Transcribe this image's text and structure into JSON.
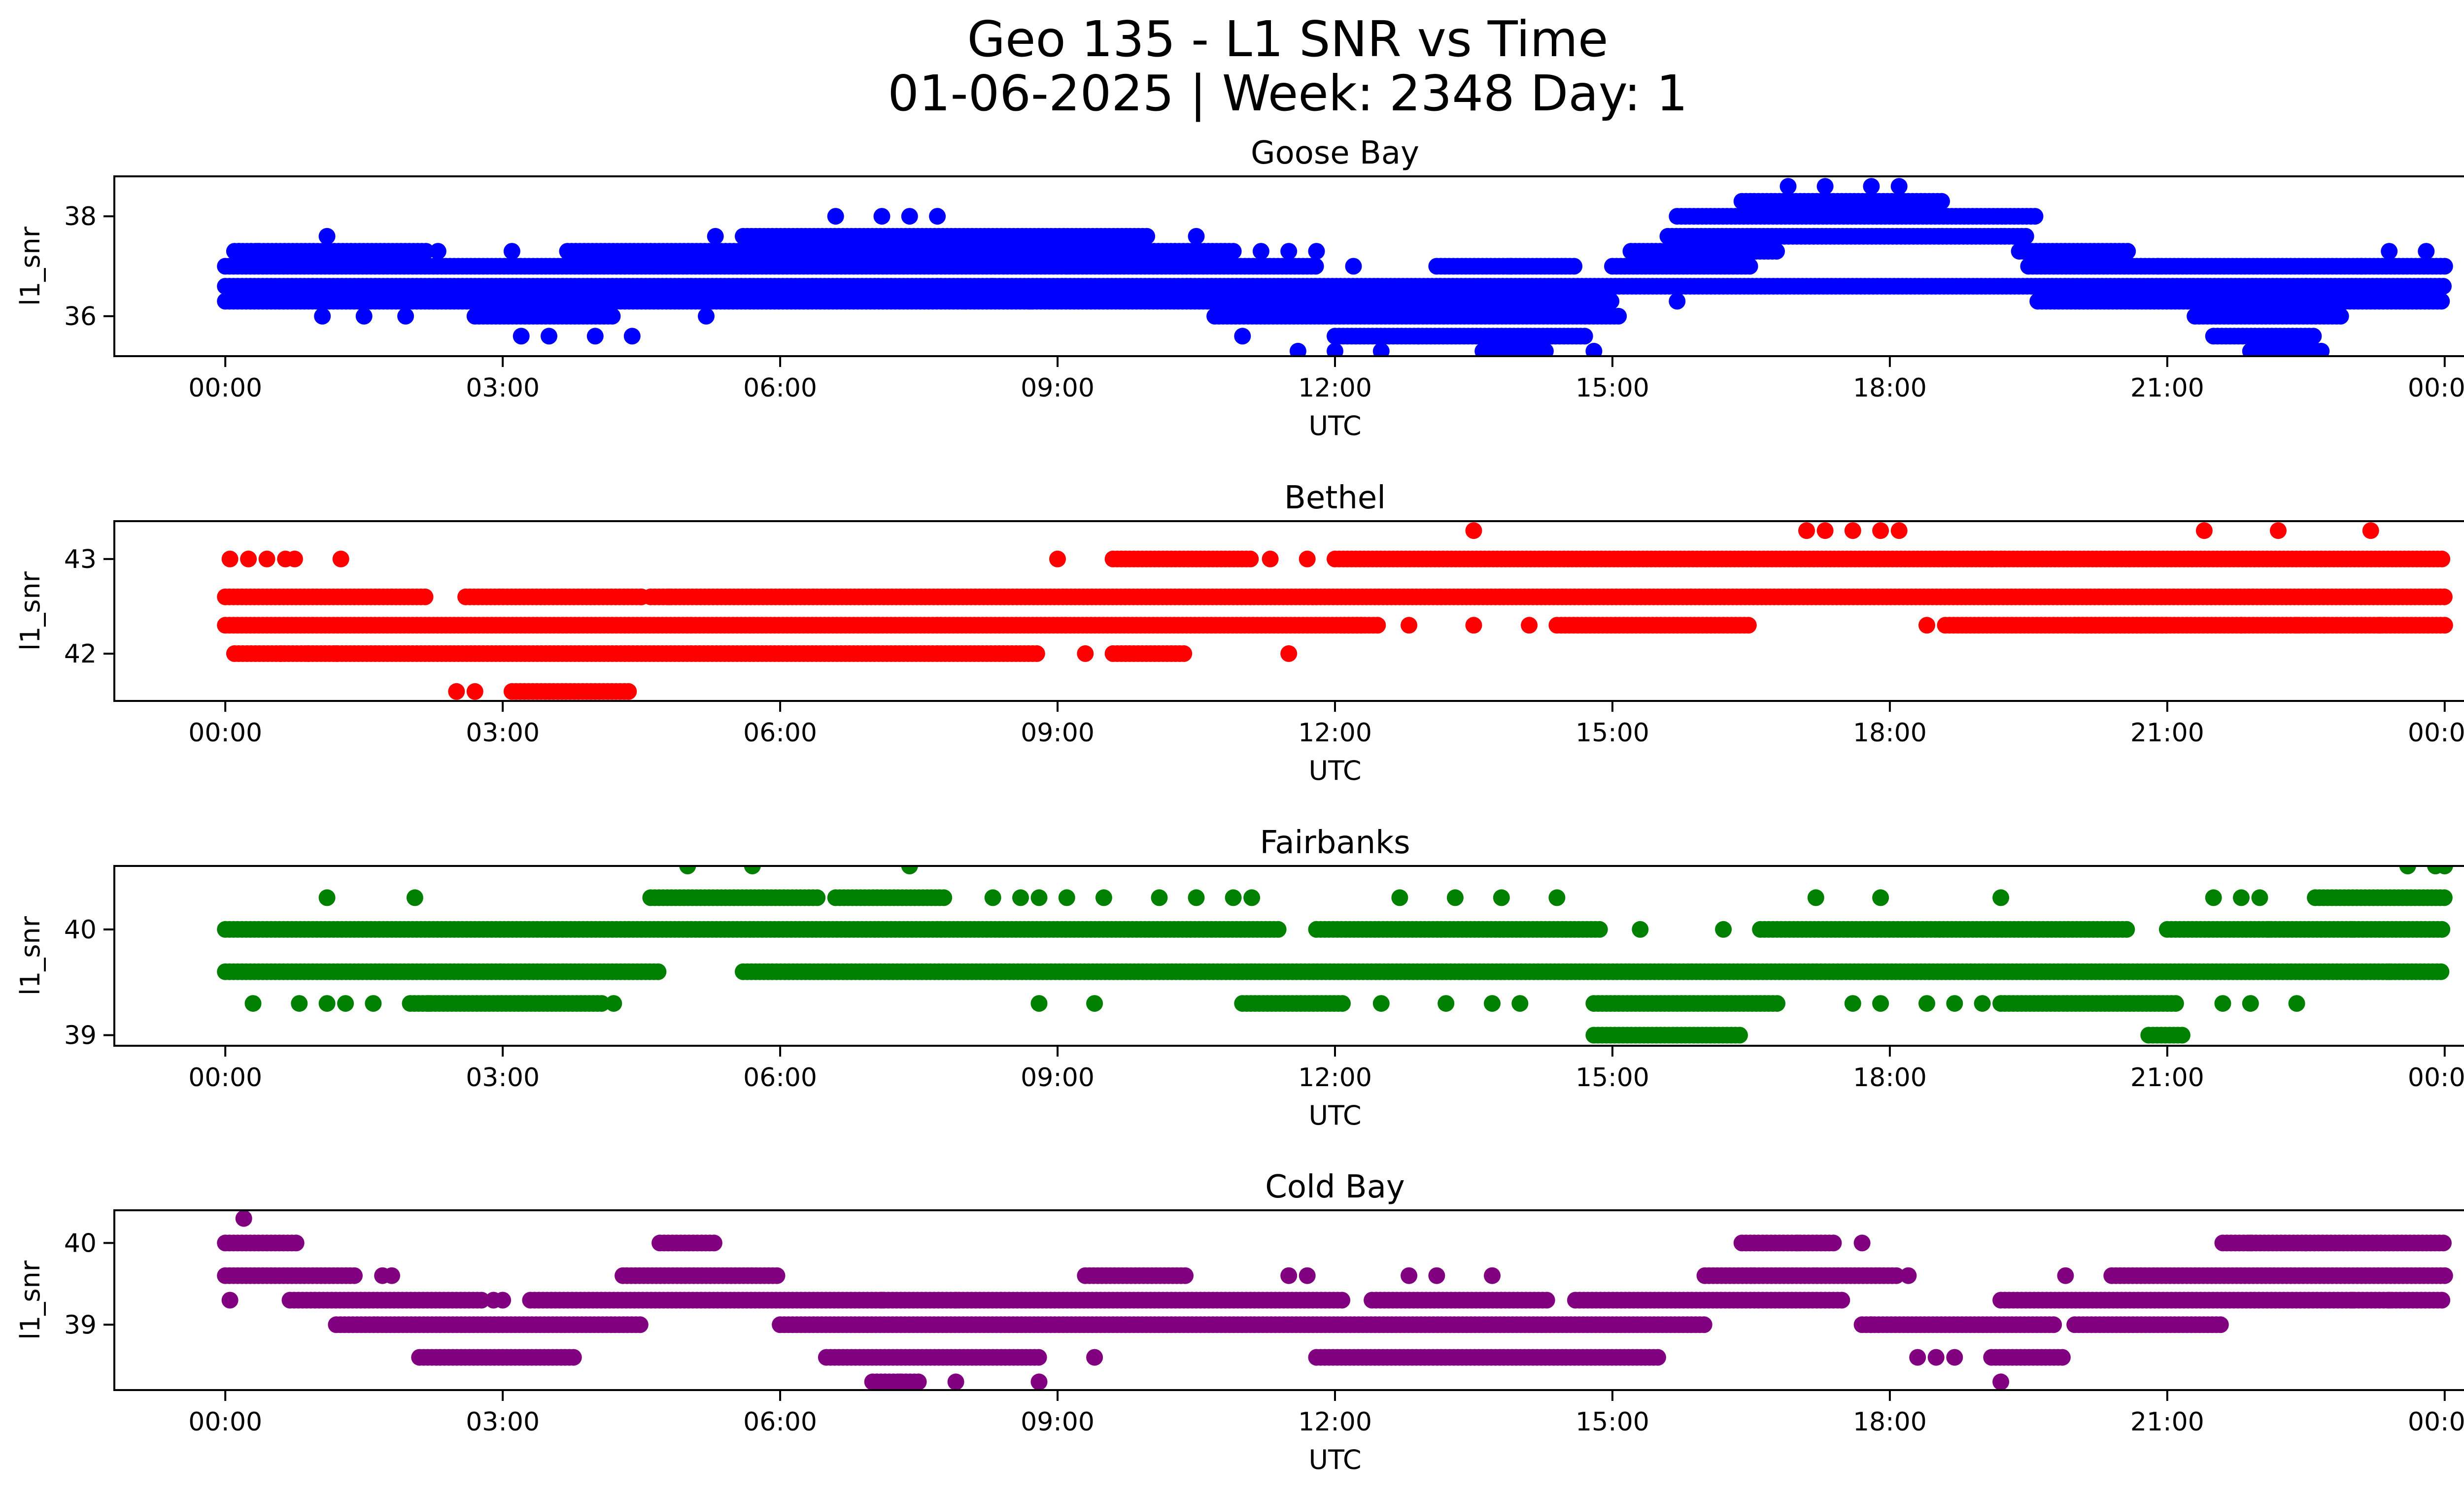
{
  "figure": {
    "title_line1": "Geo 135 - L1 SNR vs Time",
    "title_line2": "01-06-2025 | Week: 2348 Day: 1"
  },
  "chart_data": [
    {
      "type": "scatter",
      "title": "Goose Bay",
      "xlabel": "UTC",
      "ylabel": "l1_snr",
      "color": "#0000ff",
      "x_unit": "hours",
      "xlim": [
        -1.2,
        25.2
      ],
      "ylim": [
        35.2,
        38.8
      ],
      "x_ticks": [
        0,
        3,
        6,
        9,
        12,
        15,
        18,
        21,
        24
      ],
      "x_tick_labels": [
        "00:00",
        "03:00",
        "06:00",
        "09:00",
        "12:00",
        "15:00",
        "18:00",
        "21:00",
        "00:00"
      ],
      "y_ticks": [
        36,
        38
      ],
      "y_tick_labels": [
        "36",
        "38"
      ],
      "bands": [
        {
          "y": 37.0,
          "segments": [
            [
              0,
              11.8
            ],
            [
              13.1,
              14.6
            ],
            [
              19.5,
              24
            ]
          ]
        },
        {
          "y": 36.6,
          "segments": [
            [
              0,
              24
            ]
          ]
        },
        {
          "y": 36.3,
          "segments": [
            [
              0,
              15.0
            ],
            [
              19.6,
              24
            ]
          ]
        },
        {
          "y": 37.3,
          "segments": [
            [
              3.7,
              10.9
            ],
            [
              15.2,
              16.8
            ],
            [
              19.4,
              20.6
            ]
          ]
        },
        {
          "y": 36.0,
          "segments": [
            [
              2.7,
              4.2
            ],
            [
              10.7,
              15.1
            ],
            [
              21.3,
              22.9
            ]
          ]
        },
        {
          "y": 37.6,
          "segments": [
            [
              5.6,
              10.0
            ],
            [
              15.6,
              19.5
            ]
          ]
        },
        {
          "y": 37.0,
          "segments": [
            [
              15.0,
              16.5
            ]
          ]
        },
        {
          "y": 38.0,
          "segments": [
            [
              15.7,
              19.6
            ]
          ]
        },
        {
          "y": 38.3,
          "segments": [
            [
              16.4,
              18.6
            ]
          ]
        },
        {
          "y": 35.6,
          "segments": [
            [
              12.0,
              14.7
            ],
            [
              21.5,
              22.6
            ]
          ]
        },
        {
          "y": 35.3,
          "segments": [
            [
              13.6,
              14.3
            ],
            [
              21.9,
              22.7
            ]
          ]
        },
        {
          "y": 37.3,
          "segments": [
            [
              0.1,
              2.2
            ]
          ]
        }
      ],
      "points": [
        [
          0.15,
          37.3
        ],
        [
          0.35,
          37.3
        ],
        [
          1.1,
          37.6
        ],
        [
          1.05,
          36.0
        ],
        [
          1.5,
          36.0
        ],
        [
          1.95,
          36.0
        ],
        [
          2.3,
          37.3
        ],
        [
          3.1,
          37.3
        ],
        [
          3.2,
          35.6
        ],
        [
          3.5,
          35.6
        ],
        [
          4.0,
          35.6
        ],
        [
          4.4,
          35.6
        ],
        [
          5.2,
          36.0
        ],
        [
          5.3,
          37.6
        ],
        [
          6.6,
          38.0
        ],
        [
          7.1,
          38.0
        ],
        [
          7.4,
          38.0
        ],
        [
          7.7,
          38.0
        ],
        [
          8.0,
          36.3
        ],
        [
          8.3,
          36.6
        ],
        [
          8.7,
          36.3
        ],
        [
          9.1,
          37.0
        ],
        [
          10.5,
          37.6
        ],
        [
          11.2,
          37.3
        ],
        [
          11.5,
          37.3
        ],
        [
          11.8,
          37.3
        ],
        [
          12.2,
          37.0
        ],
        [
          11.0,
          35.6
        ],
        [
          11.6,
          35.3
        ],
        [
          12.0,
          35.3
        ],
        [
          12.5,
          35.3
        ],
        [
          12.9,
          35.6
        ],
        [
          13.9,
          37.0
        ],
        [
          14.8,
          35.3
        ],
        [
          15.7,
          36.3
        ],
        [
          16.9,
          38.6
        ],
        [
          17.3,
          38.6
        ],
        [
          17.8,
          38.6
        ],
        [
          18.1,
          38.6
        ],
        [
          20.9,
          37.0
        ],
        [
          22.5,
          36.6
        ],
        [
          23.1,
          37.0
        ],
        [
          23.8,
          37.3
        ],
        [
          23.4,
          37.3
        ]
      ]
    },
    {
      "type": "scatter",
      "title": "Bethel",
      "xlabel": "UTC",
      "ylabel": "l1_snr",
      "color": "#ff0000",
      "x_unit": "hours",
      "xlim": [
        -1.2,
        25.2
      ],
      "ylim": [
        41.5,
        43.4
      ],
      "x_ticks": [
        0,
        3,
        6,
        9,
        12,
        15,
        18,
        21,
        24
      ],
      "x_tick_labels": [
        "00:00",
        "03:00",
        "06:00",
        "09:00",
        "12:00",
        "15:00",
        "18:00",
        "21:00",
        "00:00"
      ],
      "y_ticks": [
        42,
        43
      ],
      "y_tick_labels": [
        "42",
        "43"
      ],
      "bands": [
        {
          "y": 42.6,
          "segments": [
            [
              0,
              2.2
            ],
            [
              4.6,
              24
            ]
          ]
        },
        {
          "y": 42.3,
          "segments": [
            [
              0,
              12.3
            ],
            [
              14.4,
              16.5
            ],
            [
              18.6,
              24
            ]
          ]
        },
        {
          "y": 42.0,
          "segments": [
            [
              0.9,
              8.8
            ],
            [
              9.6,
              10.4
            ]
          ]
        },
        {
          "y": 43.0,
          "segments": [
            [
              9.6,
              11.1
            ],
            [
              12.0,
              24
            ]
          ]
        },
        {
          "y": 41.6,
          "segments": [
            [
              3.1,
              4.4
            ]
          ]
        },
        {
          "y": 42.6,
          "segments": [
            [
              2.6,
              4.5
            ]
          ]
        },
        {
          "y": 42.3,
          "segments": [
            [
              12.1,
              12.5
            ],
            [
              20.0,
              21.0
            ]
          ]
        },
        {
          "y": 42.0,
          "segments": [
            [
              0.1,
              0.9
            ]
          ]
        }
      ],
      "points": [
        [
          0.05,
          43.0
        ],
        [
          0.25,
          43.0
        ],
        [
          0.45,
          43.0
        ],
        [
          0.65,
          43.0
        ],
        [
          0.75,
          43.0
        ],
        [
          1.25,
          43.0
        ],
        [
          0.6,
          42.0
        ],
        [
          0.9,
          42.0
        ],
        [
          1.2,
          42.0
        ],
        [
          2.5,
          41.6
        ],
        [
          2.7,
          41.6
        ],
        [
          4.5,
          42.6
        ],
        [
          4.8,
          42.6
        ],
        [
          9.0,
          43.0
        ],
        [
          9.3,
          42.0
        ],
        [
          11.5,
          42.0
        ],
        [
          11.3,
          43.0
        ],
        [
          11.7,
          43.0
        ],
        [
          12.8,
          42.3
        ],
        [
          13.5,
          42.3
        ],
        [
          13.5,
          43.3
        ],
        [
          14.1,
          42.3
        ],
        [
          17.1,
          43.3
        ],
        [
          17.3,
          43.3
        ],
        [
          17.6,
          43.3
        ],
        [
          17.9,
          43.3
        ],
        [
          18.1,
          43.3
        ],
        [
          18.4,
          42.3
        ],
        [
          21.4,
          43.3
        ],
        [
          22.2,
          43.3
        ],
        [
          23.2,
          43.3
        ],
        [
          21.8,
          42.3
        ],
        [
          22.4,
          42.3
        ],
        [
          22.7,
          42.3
        ],
        [
          23.3,
          42.3
        ],
        [
          19.1,
          43.0
        ]
      ]
    },
    {
      "type": "scatter",
      "title": "Fairbanks",
      "xlabel": "UTC",
      "ylabel": "l1_snr",
      "color": "#008000",
      "x_unit": "hours",
      "xlim": [
        -1.2,
        25.2
      ],
      "ylim": [
        38.9,
        40.6
      ],
      "x_ticks": [
        0,
        3,
        6,
        9,
        12,
        15,
        18,
        21,
        24
      ],
      "x_tick_labels": [
        "00:00",
        "03:00",
        "06:00",
        "09:00",
        "12:00",
        "15:00",
        "18:00",
        "21:00",
        "00:00"
      ],
      "y_ticks": [
        39,
        40
      ],
      "y_tick_labels": [
        "39",
        "40"
      ],
      "bands": [
        {
          "y": 40.0,
          "segments": [
            [
              0,
              11.4
            ],
            [
              11.8,
              14.9
            ],
            [
              16.6,
              20.6
            ],
            [
              21.0,
              24
            ]
          ]
        },
        {
          "y": 39.6,
          "segments": [
            [
              0,
              4.7
            ],
            [
              5.6,
              24
            ]
          ]
        },
        {
          "y": 39.3,
          "segments": [
            [
              11.0,
              12.1
            ],
            [
              14.8,
              16.8
            ],
            [
              19.2,
              21.1
            ]
          ]
        },
        {
          "y": 40.3,
          "segments": [
            [
              4.6,
              6.4
            ],
            [
              6.6,
              7.8
            ],
            [
              22.6,
              24
            ]
          ]
        },
        {
          "y": 39.0,
          "segments": [
            [
              14.8,
              16.4
            ],
            [
              20.8,
              21.2
            ]
          ]
        },
        {
          "y": 39.3,
          "segments": [
            [
              2.0,
              4.1
            ]
          ]
        }
      ],
      "points": [
        [
          0.3,
          39.3
        ],
        [
          0.8,
          39.3
        ],
        [
          1.1,
          39.3
        ],
        [
          1.3,
          39.3
        ],
        [
          1.6,
          39.3
        ],
        [
          1.1,
          40.3
        ],
        [
          2.05,
          40.3
        ],
        [
          2.2,
          39.3
        ],
        [
          4.2,
          39.3
        ],
        [
          5.0,
          40.6
        ],
        [
          5.7,
          40.6
        ],
        [
          7.4,
          40.6
        ],
        [
          8.3,
          40.3
        ],
        [
          8.6,
          40.3
        ],
        [
          8.8,
          40.3
        ],
        [
          9.1,
          40.3
        ],
        [
          9.5,
          40.3
        ],
        [
          10.1,
          40.3
        ],
        [
          10.5,
          40.3
        ],
        [
          10.9,
          40.3
        ],
        [
          11.1,
          40.3
        ],
        [
          8.8,
          39.3
        ],
        [
          9.4,
          39.3
        ],
        [
          12.5,
          39.3
        ],
        [
          13.2,
          39.3
        ],
        [
          13.7,
          39.3
        ],
        [
          14.0,
          39.3
        ],
        [
          12.7,
          40.3
        ],
        [
          13.3,
          40.3
        ],
        [
          13.8,
          40.3
        ],
        [
          14.4,
          40.3
        ],
        [
          15.3,
          40.0
        ],
        [
          16.2,
          40.0
        ],
        [
          17.2,
          40.3
        ],
        [
          17.9,
          40.3
        ],
        [
          19.2,
          40.3
        ],
        [
          17.6,
          39.3
        ],
        [
          17.9,
          39.3
        ],
        [
          18.4,
          39.3
        ],
        [
          18.7,
          39.3
        ],
        [
          19.0,
          39.3
        ],
        [
          21.5,
          40.3
        ],
        [
          21.8,
          40.3
        ],
        [
          22.0,
          40.3
        ],
        [
          23.6,
          40.6
        ],
        [
          23.9,
          40.6
        ],
        [
          24.0,
          40.6
        ],
        [
          21.6,
          39.3
        ],
        [
          21.9,
          39.3
        ],
        [
          22.4,
          39.3
        ],
        [
          23.4,
          39.6
        ],
        [
          23.0,
          40.0
        ],
        [
          22.1,
          40.0
        ]
      ]
    },
    {
      "type": "scatter",
      "title": "Cold Bay",
      "xlabel": "UTC",
      "ylabel": "l1_snr",
      "color": "#800080",
      "x_unit": "hours",
      "xlim": [
        -1.2,
        25.2
      ],
      "ylim": [
        38.2,
        40.4
      ],
      "x_ticks": [
        0,
        3,
        6,
        9,
        12,
        15,
        18,
        21,
        24
      ],
      "x_tick_labels": [
        "00:00",
        "03:00",
        "06:00",
        "09:00",
        "12:00",
        "15:00",
        "18:00",
        "21:00",
        "00:00"
      ],
      "y_ticks": [
        39,
        40
      ],
      "y_tick_labels": [
        "39",
        "40"
      ],
      "bands": [
        {
          "y": 39.6,
          "segments": [
            [
              0,
              1.4
            ],
            [
              4.3,
              6.0
            ],
            [
              9.3,
              10.4
            ],
            [
              16.0,
              18.1
            ],
            [
              20.4,
              24
            ]
          ]
        },
        {
          "y": 39.3,
          "segments": [
            [
              0.7,
              2.8
            ],
            [
              3.3,
              12.1
            ],
            [
              12.4,
              14.3
            ],
            [
              14.6,
              17.5
            ],
            [
              19.2,
              24
            ]
          ]
        },
        {
          "y": 39.0,
          "segments": [
            [
              1.2,
              4.5
            ],
            [
              6.0,
              16.0
            ],
            [
              17.7,
              19.8
            ],
            [
              20.0,
              21.6
            ]
          ]
        },
        {
          "y": 38.6,
          "segments": [
            [
              2.1,
              3.8
            ],
            [
              6.5,
              8.8
            ],
            [
              11.8,
              15.5
            ],
            [
              19.1,
              19.9
            ]
          ]
        },
        {
          "y": 40.0,
          "segments": [
            [
              0,
              0.8
            ],
            [
              4.7,
              5.3
            ],
            [
              16.4,
              17.4
            ],
            [
              21.6,
              24
            ]
          ]
        },
        {
          "y": 38.3,
          "segments": [
            [
              7.0,
              7.5
            ]
          ]
        }
      ],
      "points": [
        [
          0.2,
          40.3
        ],
        [
          0.05,
          39.3
        ],
        [
          1.7,
          39.6
        ],
        [
          1.8,
          39.6
        ],
        [
          2.9,
          39.3
        ],
        [
          3.0,
          39.3
        ],
        [
          9.4,
          38.6
        ],
        [
          8.8,
          38.3
        ],
        [
          7.9,
          38.3
        ],
        [
          7.3,
          38.3
        ],
        [
          7.1,
          39.3
        ],
        [
          7.9,
          39.3
        ],
        [
          12.8,
          39.6
        ],
        [
          13.1,
          39.6
        ],
        [
          13.7,
          39.6
        ],
        [
          11.5,
          39.6
        ],
        [
          11.7,
          39.6
        ],
        [
          17.8,
          39.0
        ],
        [
          18.3,
          38.6
        ],
        [
          18.5,
          38.6
        ],
        [
          18.7,
          38.6
        ],
        [
          19.2,
          38.3
        ],
        [
          19.9,
          39.6
        ],
        [
          18.2,
          39.6
        ],
        [
          17.0,
          40.0
        ],
        [
          17.7,
          40.0
        ],
        [
          21.9,
          40.0
        ],
        [
          22.5,
          40.0
        ],
        [
          23.0,
          39.3
        ],
        [
          23.4,
          39.3
        ]
      ]
    }
  ]
}
